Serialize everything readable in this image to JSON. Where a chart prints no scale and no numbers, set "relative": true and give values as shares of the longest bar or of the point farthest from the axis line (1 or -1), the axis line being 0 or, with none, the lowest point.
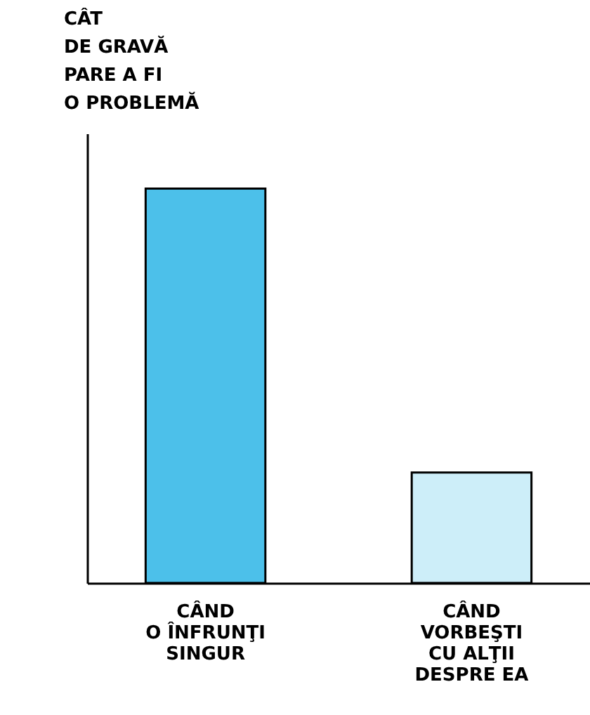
{
  "chart_data": {
    "type": "bar",
    "relative": true,
    "ylabel": "CÂT\nDE GRAVĂ\nPARE A FI\nO PROBLEMĂ",
    "categories": [
      "CÂND\nO ÎNFRUNŢI\nSINGUR",
      "CÂND\nVORBEŞTI\nCU ALŢII\nDESPRE EA"
    ],
    "values": [
      1,
      0.28
    ],
    "colors": [
      "#4cc0ea",
      "#cdeef9"
    ]
  }
}
